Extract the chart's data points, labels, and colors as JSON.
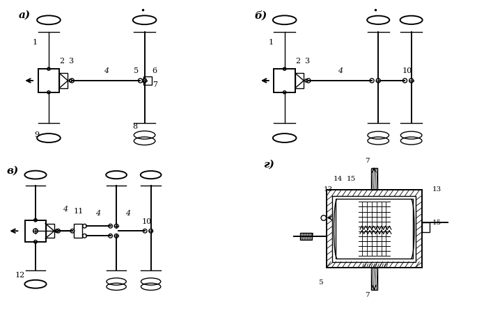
{
  "bg_color": "#ffffff",
  "line_color": "#000000",
  "label_a": "а)",
  "label_b": "б)",
  "label_v": "в)",
  "label_g": "г)"
}
